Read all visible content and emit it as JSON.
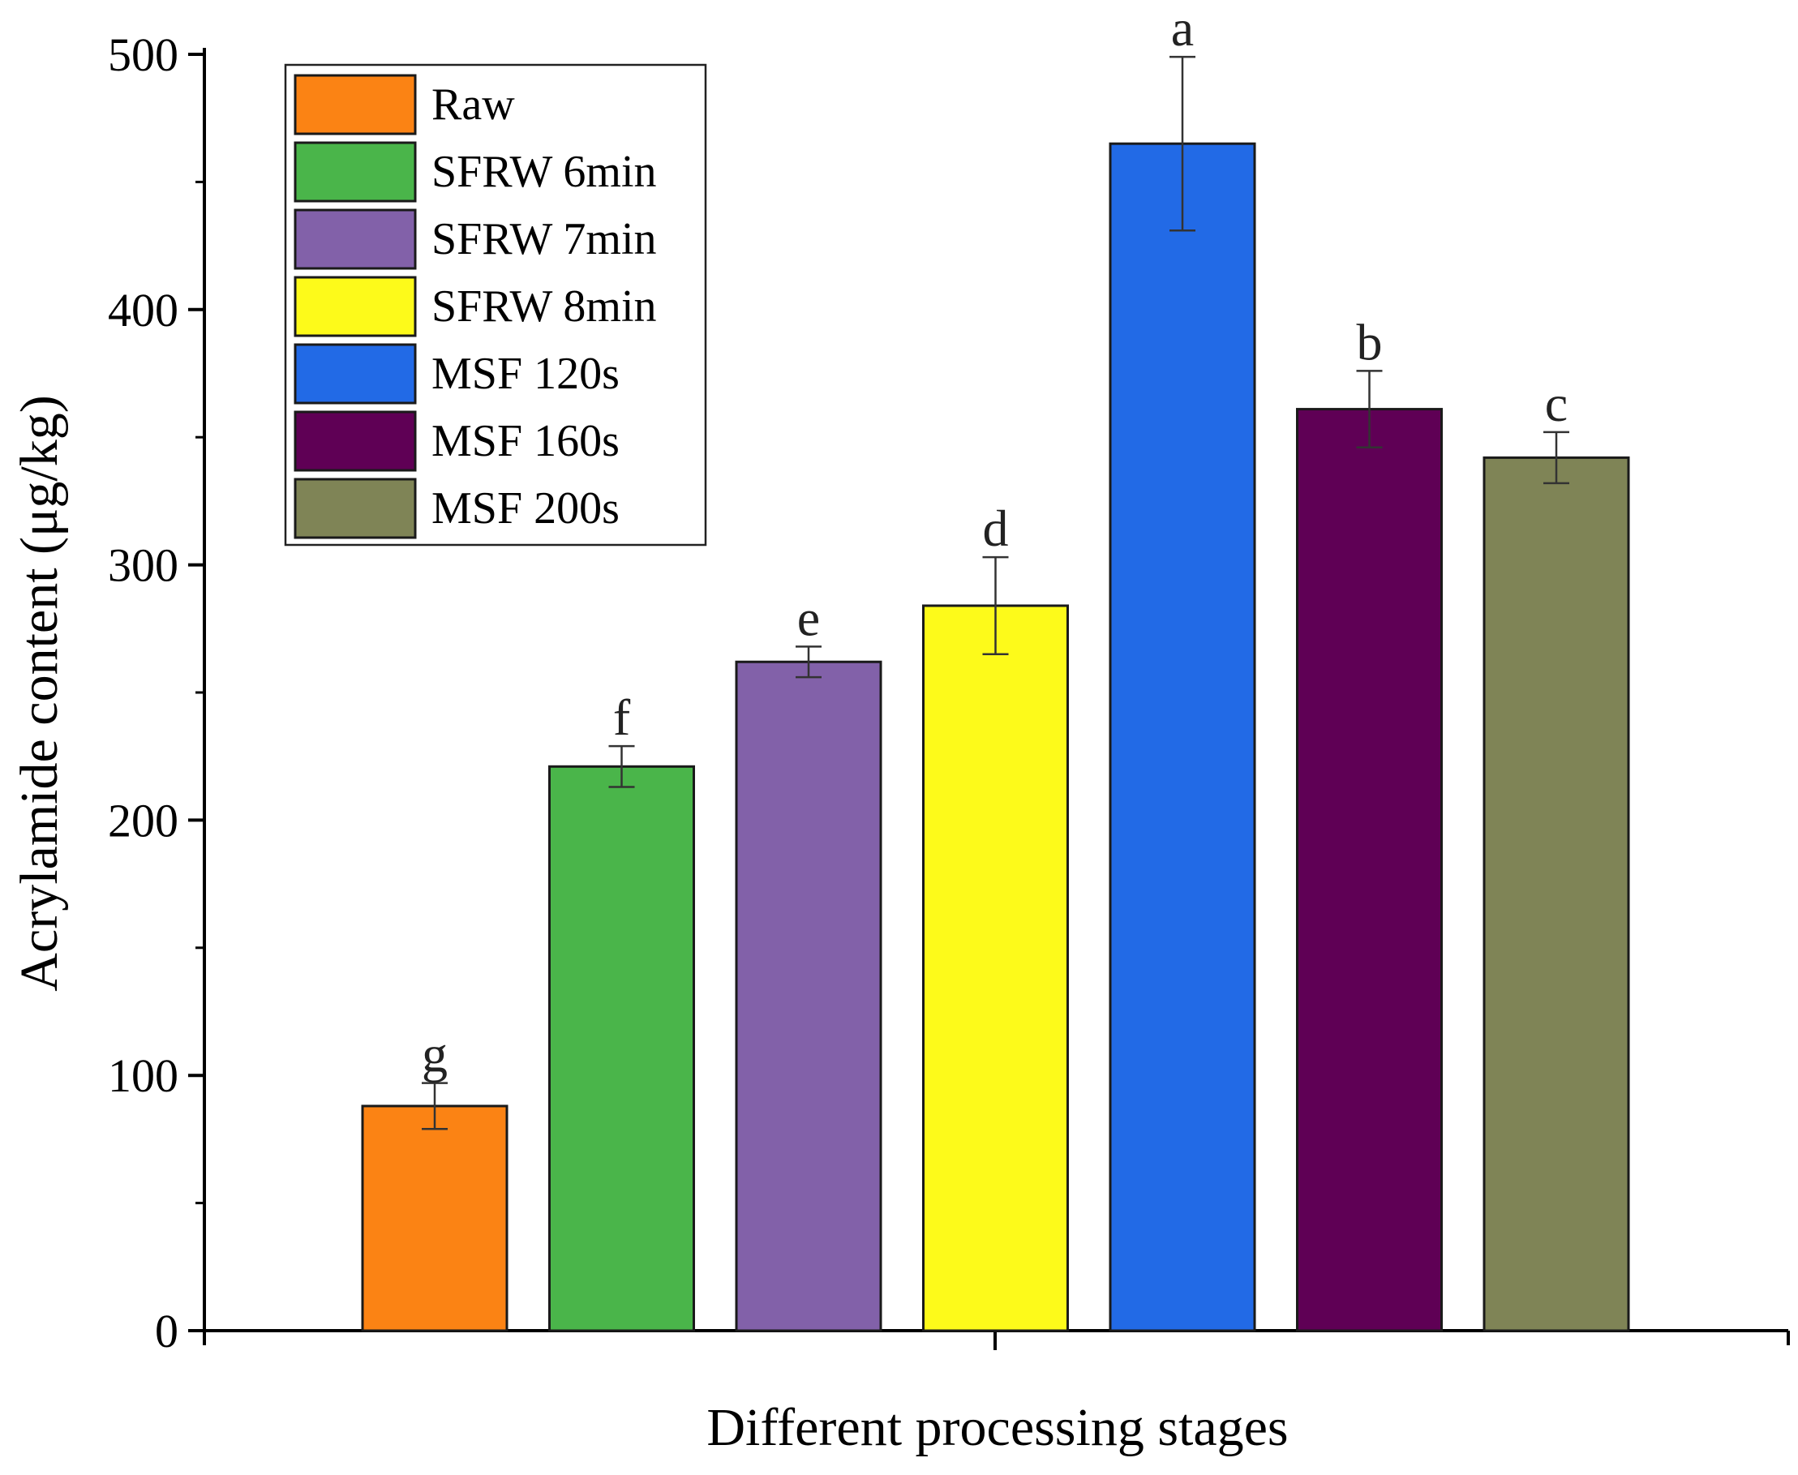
{
  "chart_data": {
    "type": "bar",
    "title": "",
    "xlabel": "Different processing stages",
    "ylabel": "Acrylamide content (μg/kg)",
    "ylim": [
      0,
      500
    ],
    "yticks": [
      0,
      100,
      200,
      300,
      400,
      500
    ],
    "grid": false,
    "legend_position": "top-left",
    "categories": [
      "Raw",
      "SFRW 6min",
      "SFRW 7min",
      "SFRW 8min",
      "MSF 120s",
      "MSF 160s",
      "MSF 200s"
    ],
    "values": [
      88,
      221,
      262,
      284,
      465,
      361,
      342
    ],
    "errors": [
      9,
      8,
      6,
      19,
      34,
      15,
      10
    ],
    "significance": [
      "g",
      "f",
      "e",
      "d",
      "a",
      "b",
      "c"
    ],
    "colors": [
      "#fb8314",
      "#4ab54a",
      "#8261a9",
      "#fdfa1a",
      "#226ae6",
      "#5f0055",
      "#7f8456"
    ]
  }
}
